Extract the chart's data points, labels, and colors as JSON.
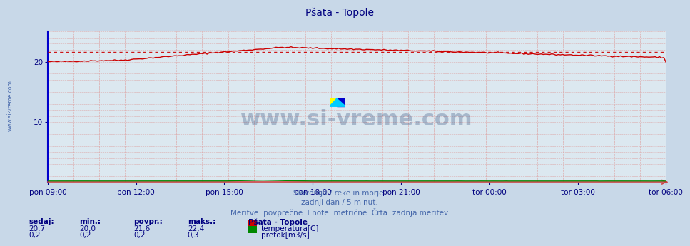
{
  "title": "Pšata - Topole",
  "title_color": "#000080",
  "title_fontsize": 10,
  "bg_color": "#c8d8e8",
  "plot_bg_color": "#dce8f0",
  "x_tick_labels": [
    "pon 09:00",
    "pon 12:00",
    "pon 15:00",
    "pon 18:00",
    "pon 21:00",
    "tor 00:00",
    "tor 03:00",
    "tor 06:00"
  ],
  "x_tick_count": 8,
  "n_points": 288,
  "ylim": [
    0,
    25
  ],
  "y_ticks": [
    10,
    20
  ],
  "tick_fontsize": 7.5,
  "footer_line1": "Slovenija / reke in morje.",
  "footer_line2": "zadnji dan / 5 minut.",
  "footer_line3": "Meritve: povprečne  Enote: metrične  Črta: zadnja meritev",
  "footer_color": "#4466aa",
  "footer_fontsize": 7.5,
  "legend_title": "Pšata - Topole",
  "stats_labels": [
    "sedaj:",
    "min.:",
    "povpr.:",
    "maks.:"
  ],
  "stats_temp": [
    "20,7",
    "20,0",
    "21,6",
    "22,4"
  ],
  "stats_flow": [
    "0,2",
    "0,2",
    "0,2",
    "0,3"
  ],
  "temp_color": "#cc0000",
  "flow_color": "#008800",
  "avg_line_color": "#cc0000",
  "tick_color": "#000080",
  "label_color": "#4466aa",
  "watermark_color": "#1a3a6e",
  "spine_left_color": "#0000cc",
  "spine_bottom_color": "#cc4444",
  "temp_avg": 21.6,
  "flow_avg": 0.2,
  "grid_dashed_color": "#ddaaaa",
  "grid_dotted_color": "#ddaaaa"
}
